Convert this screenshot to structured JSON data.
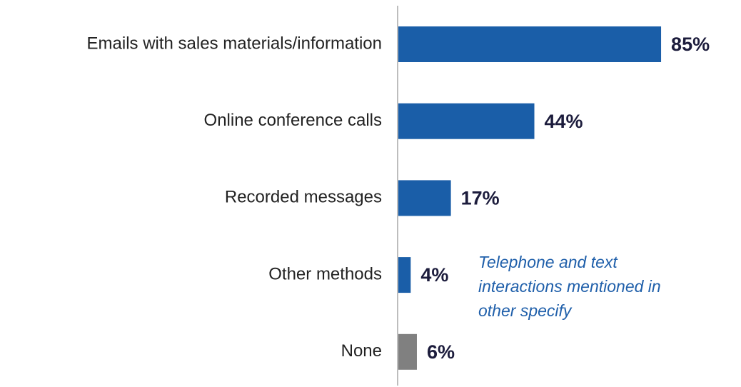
{
  "chart_data": {
    "type": "bar",
    "orientation": "horizontal",
    "categories": [
      "Emails with sales materials/information",
      "Online conference calls",
      "Recorded messages",
      "Other methods",
      "None"
    ],
    "values": [
      85,
      44,
      17,
      4,
      6
    ],
    "value_labels": [
      "85%",
      "44%",
      "17%",
      "4%",
      "6%"
    ],
    "colors": [
      "#1a5ea8",
      "#1a5ea8",
      "#1a5ea8",
      "#1a5ea8",
      "#808080"
    ],
    "xlim": [
      0,
      100
    ],
    "annotation": [
      "Telephone and text",
      "interactions mentioned in",
      "other specify"
    ]
  }
}
